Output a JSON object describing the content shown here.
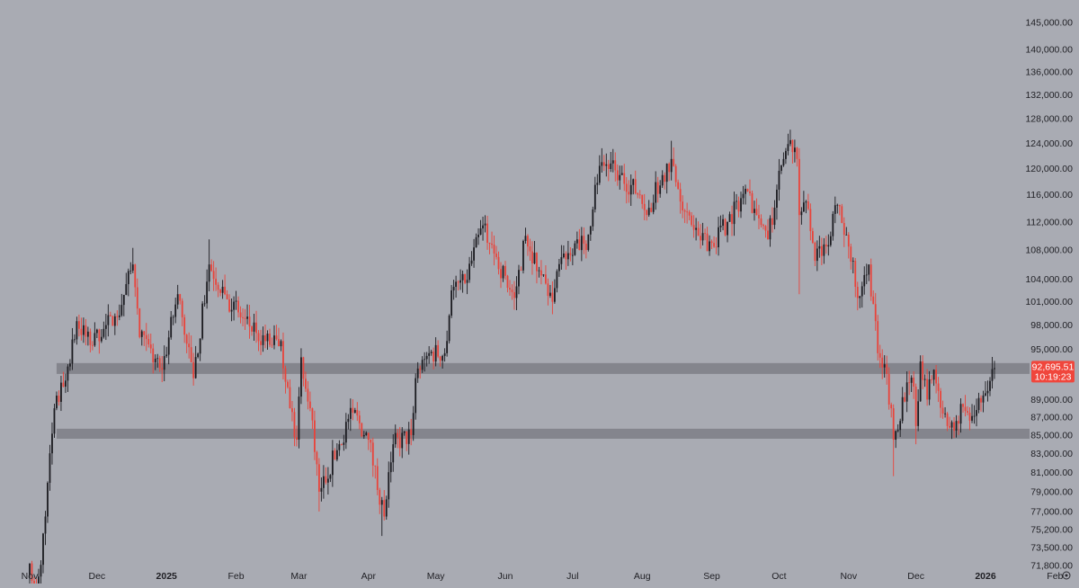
{
  "chart_data": {
    "type": "candlestick",
    "colors": {
      "background": "#a9abb3",
      "up_body": "#1b1b20",
      "down_body": "#e9433a",
      "zone": "#82838b",
      "price_tag": "#f0463c",
      "axis_text": "#1f1f24"
    },
    "y_axis": {
      "scale": "log",
      "ylim": [
        71800,
        146500
      ],
      "ticks": [
        "145,000.00",
        "140,000.00",
        "136,000.00",
        "132,000.00",
        "128,000.00",
        "124,000.00",
        "120,000.00",
        "116,000.00",
        "112,000.00",
        "108,000.00",
        "104,000.00",
        "101,000.00",
        "98,000.00",
        "95,000.00",
        "89,000.00",
        "87,000.00",
        "85,000.00",
        "83,000.00",
        "81,000.00",
        "79,000.00",
        "77,000.00",
        "75,200.00",
        "73,500.00",
        "71,800.00"
      ]
    },
    "x_axis": {
      "ticks": [
        {
          "label": "Nov",
          "date": "2024-11-01",
          "bold": false
        },
        {
          "label": "Dec",
          "date": "2024-12-01",
          "bold": false
        },
        {
          "label": "2025",
          "date": "2025-01-01",
          "bold": true
        },
        {
          "label": "Feb",
          "date": "2025-02-01",
          "bold": false
        },
        {
          "label": "Mar",
          "date": "2025-03-01",
          "bold": false
        },
        {
          "label": "Apr",
          "date": "2025-04-01",
          "bold": false
        },
        {
          "label": "May",
          "date": "2025-05-01",
          "bold": false
        },
        {
          "label": "Jun",
          "date": "2025-06-01",
          "bold": false
        },
        {
          "label": "Jul",
          "date": "2025-07-01",
          "bold": false
        },
        {
          "label": "Aug",
          "date": "2025-08-01",
          "bold": false
        },
        {
          "label": "Sep",
          "date": "2025-09-01",
          "bold": false
        },
        {
          "label": "Oct",
          "date": "2025-10-01",
          "bold": false
        },
        {
          "label": "Nov",
          "date": "2025-11-01",
          "bold": false
        },
        {
          "label": "Dec",
          "date": "2025-12-01",
          "bold": false
        },
        {
          "label": "2026",
          "date": "2026-01-01",
          "bold": true
        },
        {
          "label": "Feb",
          "date": "2026-02-01",
          "bold": false
        }
      ]
    },
    "zones": [
      {
        "name": "resistance-zone",
        "low": 92000,
        "high": 93300,
        "from": "2024-11-13",
        "to": "2026-02-13"
      },
      {
        "name": "support-zone",
        "low": 84600,
        "high": 85700,
        "from": "2024-11-13",
        "to": "2026-02-13"
      }
    ],
    "last_price": {
      "value": "92,695.51",
      "countdown": "10:19:23"
    },
    "path_keypoints": [
      {
        "date": "2024-11-01",
        "close": 72000
      },
      {
        "date": "2024-11-04",
        "close": 68500
      },
      {
        "date": "2024-11-08",
        "close": 76500
      },
      {
        "date": "2024-11-12",
        "close": 88000
      },
      {
        "date": "2024-11-16",
        "close": 90500
      },
      {
        "date": "2024-11-22",
        "close": 98500
      },
      {
        "date": "2024-11-28",
        "close": 95500
      },
      {
        "date": "2024-12-05",
        "close": 98000
      },
      {
        "date": "2024-12-10",
        "close": 99000
      },
      {
        "date": "2024-12-17",
        "close": 106000
      },
      {
        "date": "2024-12-20",
        "close": 96500
      },
      {
        "date": "2024-12-30",
        "close": 92500
      },
      {
        "date": "2025-01-06",
        "close": 102000
      },
      {
        "date": "2025-01-13",
        "close": 91500
      },
      {
        "date": "2025-01-20",
        "close": 106000
      },
      {
        "date": "2025-01-27",
        "close": 102000
      },
      {
        "date": "2025-02-03",
        "close": 99000
      },
      {
        "date": "2025-02-10",
        "close": 97000
      },
      {
        "date": "2025-02-17",
        "close": 95500
      },
      {
        "date": "2025-02-21",
        "close": 96000
      },
      {
        "date": "2025-02-25",
        "close": 88000
      },
      {
        "date": "2025-02-28",
        "close": 84500
      },
      {
        "date": "2025-03-02",
        "close": 94000
      },
      {
        "date": "2025-03-06",
        "close": 88000
      },
      {
        "date": "2025-03-10",
        "close": 79000
      },
      {
        "date": "2025-03-19",
        "close": 84000
      },
      {
        "date": "2025-03-25",
        "close": 87500
      },
      {
        "date": "2025-04-01",
        "close": 84500
      },
      {
        "date": "2025-04-08",
        "close": 76500
      },
      {
        "date": "2025-04-12",
        "close": 84000
      },
      {
        "date": "2025-04-20",
        "close": 85000
      },
      {
        "date": "2025-04-22",
        "close": 91500
      },
      {
        "date": "2025-04-28",
        "close": 94500
      },
      {
        "date": "2025-05-05",
        "close": 94500
      },
      {
        "date": "2025-05-08",
        "close": 102500
      },
      {
        "date": "2025-05-14",
        "close": 103500
      },
      {
        "date": "2025-05-22",
        "close": 111500
      },
      {
        "date": "2025-05-27",
        "close": 107500
      },
      {
        "date": "2025-06-05",
        "close": 101500
      },
      {
        "date": "2025-06-10",
        "close": 110000
      },
      {
        "date": "2025-06-17",
        "close": 104500
      },
      {
        "date": "2025-06-22",
        "close": 101000
      },
      {
        "date": "2025-06-26",
        "close": 107000
      },
      {
        "date": "2025-07-03",
        "close": 109500
      },
      {
        "date": "2025-07-07",
        "close": 108000
      },
      {
        "date": "2025-07-11",
        "close": 117500
      },
      {
        "date": "2025-07-14",
        "close": 121000
      },
      {
        "date": "2025-07-22",
        "close": 119000
      },
      {
        "date": "2025-07-31",
        "close": 116000
      },
      {
        "date": "2025-08-03",
        "close": 113000
      },
      {
        "date": "2025-08-10",
        "close": 119000
      },
      {
        "date": "2025-08-14",
        "close": 121500
      },
      {
        "date": "2025-08-20",
        "close": 113500
      },
      {
        "date": "2025-08-26",
        "close": 110000
      },
      {
        "date": "2025-09-01",
        "close": 109000
      },
      {
        "date": "2025-09-08",
        "close": 112000
      },
      {
        "date": "2025-09-14",
        "close": 115500
      },
      {
        "date": "2025-09-17",
        "close": 116500
      },
      {
        "date": "2025-09-22",
        "close": 112500
      },
      {
        "date": "2025-09-26",
        "close": 109500
      },
      {
        "date": "2025-10-02",
        "close": 120500
      },
      {
        "date": "2025-10-06",
        "close": 124500
      },
      {
        "date": "2025-10-09",
        "close": 121500
      },
      {
        "date": "2025-10-10",
        "close": 113000
      },
      {
        "date": "2025-10-13",
        "close": 115000
      },
      {
        "date": "2025-10-17",
        "close": 106500
      },
      {
        "date": "2025-10-22",
        "close": 108500
      },
      {
        "date": "2025-10-27",
        "close": 114500
      },
      {
        "date": "2025-11-03",
        "close": 106500
      },
      {
        "date": "2025-11-05",
        "close": 101500
      },
      {
        "date": "2025-11-10",
        "close": 106000
      },
      {
        "date": "2025-11-14",
        "close": 94500
      },
      {
        "date": "2025-11-18",
        "close": 92000
      },
      {
        "date": "2025-11-21",
        "close": 84500
      },
      {
        "date": "2025-11-27",
        "close": 91000
      },
      {
        "date": "2025-11-30",
        "close": 90500
      },
      {
        "date": "2025-12-01",
        "close": 86000
      },
      {
        "date": "2025-12-03",
        "close": 93500
      },
      {
        "date": "2025-12-06",
        "close": 89000
      },
      {
        "date": "2025-12-09",
        "close": 92500
      },
      {
        "date": "2025-12-11",
        "close": 90000
      },
      {
        "date": "2025-12-15",
        "close": 86000
      },
      {
        "date": "2025-12-18",
        "close": 85500
      },
      {
        "date": "2025-12-21",
        "close": 88500
      },
      {
        "date": "2025-12-24",
        "close": 87500
      },
      {
        "date": "2025-12-28",
        "close": 87800
      },
      {
        "date": "2026-01-02",
        "close": 90000
      },
      {
        "date": "2026-01-05",
        "close": 92695.51
      }
    ],
    "extreme_wicks": [
      {
        "date": "2024-12-17",
        "high": 108300
      },
      {
        "date": "2025-01-20",
        "high": 109500
      },
      {
        "date": "2025-03-10",
        "low": 77000
      },
      {
        "date": "2025-04-07",
        "low": 74600
      },
      {
        "date": "2025-07-14",
        "high": 123200
      },
      {
        "date": "2025-08-14",
        "high": 124400
      },
      {
        "date": "2025-10-06",
        "high": 126200
      },
      {
        "date": "2025-10-10",
        "low": 102000
      },
      {
        "date": "2025-11-21",
        "low": 80600
      },
      {
        "date": "2025-12-01",
        "low": 84000
      }
    ]
  }
}
